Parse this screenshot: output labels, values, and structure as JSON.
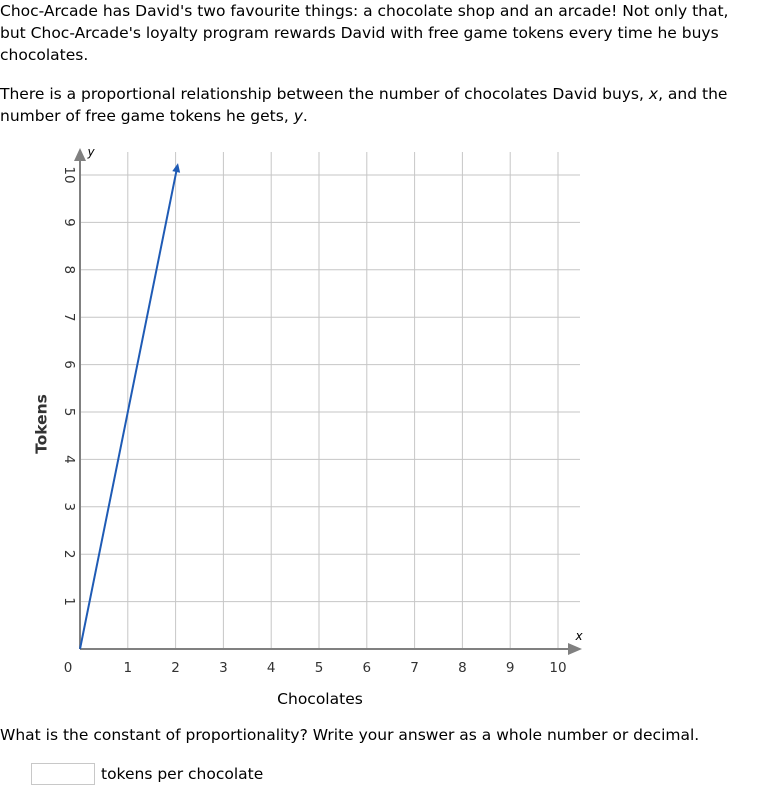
{
  "intro": {
    "paragraph1": "Choc-Arcade has David's two favourite things: a chocolate shop and an arcade! Not only that, but Choc-Arcade's loyalty program rewards David with free game tokens every time he buys chocolates.",
    "paragraph2_before_x": "There is a proportional relationship between the number of chocolates David buys, ",
    "var_x": "x",
    "paragraph2_middle": ", and the number of free game tokens he gets, ",
    "var_y": "y",
    "paragraph2_end": "."
  },
  "question": {
    "text": "What is the constant of proportionality? Write your answer as a whole number or decimal.",
    "input_value": "",
    "unit_label": "tokens per chocolate"
  },
  "colors": {
    "line": "#1f5bb5",
    "grid": "#c6c6c6",
    "axis": "#808080"
  },
  "chart_data": {
    "type": "line",
    "xlabel": "Chocolates",
    "ylabel": "Tokens",
    "x_var": "x",
    "y_var": "y",
    "xlim": [
      0,
      10
    ],
    "ylim": [
      0,
      10
    ],
    "x_ticks": [
      "0",
      "1",
      "2",
      "3",
      "4",
      "5",
      "6",
      "7",
      "8",
      "9",
      "10"
    ],
    "y_ticks": [
      "1",
      "2",
      "3",
      "4",
      "5",
      "6",
      "7",
      "8",
      "9",
      "10"
    ],
    "grid": true,
    "series": [
      {
        "points": [
          [
            0,
            0
          ],
          [
            2.05,
            10.25
          ]
        ]
      }
    ]
  }
}
